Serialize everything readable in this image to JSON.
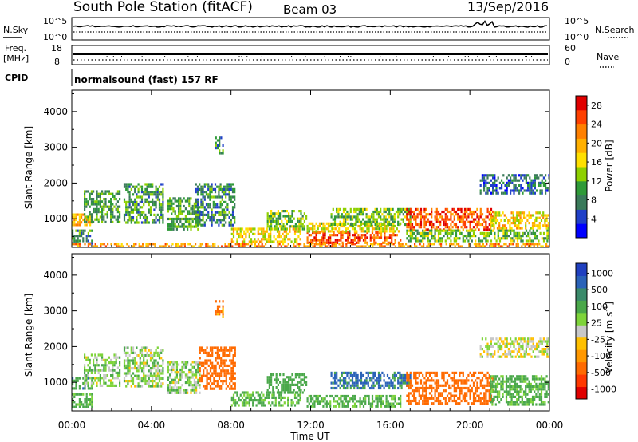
{
  "header": {
    "title": "South Pole Station (fitACF)",
    "beam": "Beam 03",
    "date": "13/Sep/2016"
  },
  "strips": {
    "nsky_label": "N.Sky",
    "nsearch_label": "N.Search",
    "noise_left_ticks": [
      "10^5",
      "10^0"
    ],
    "noise_right_ticks": [
      "10^5",
      "10^0"
    ],
    "freq_label": "Freq.",
    "freq_unit": "[MHz]",
    "freq_ticks": [
      "18",
      "8"
    ],
    "nave_label": "Nave",
    "nave_ticks": [
      "60",
      "0"
    ],
    "cpid_label": "CPID",
    "cpid_text": "normalsound (fast) 157 RF"
  },
  "chart_data": [
    {
      "type": "heatmap",
      "title": "",
      "xlabel": "Time UT",
      "ylabel": "Slant Range [km]",
      "x_ticks": [
        "00:00",
        "04:00",
        "08:00",
        "12:00",
        "16:00",
        "20:00",
        "00:00"
      ],
      "y_ticks": [
        1000,
        2000,
        3000,
        4000
      ],
      "ylim": [
        200,
        4600
      ],
      "colorbar": {
        "label": "Power [dB]",
        "ticks": [
          "4",
          "8",
          "12",
          "16",
          "20",
          "24",
          "28"
        ],
        "colors": [
          "#0000ff",
          "#2040c8",
          "#3a7a5a",
          "#2f9a38",
          "#8ed000",
          "#ffe000",
          "#ffb000",
          "#ff8000",
          "#ff4000",
          "#e00000"
        ]
      },
      "regions": [
        {
          "t0": 0.0,
          "t1": 1.0,
          "r0": 300,
          "r1": 700,
          "level": 8
        },
        {
          "t0": 0.0,
          "t1": 1.0,
          "r0": 800,
          "r1": 1150,
          "level": 20
        },
        {
          "t0": 0.6,
          "t1": 2.4,
          "r0": 900,
          "r1": 1800,
          "level": 10
        },
        {
          "t0": 2.6,
          "t1": 4.6,
          "r0": 900,
          "r1": 2000,
          "level": 9
        },
        {
          "t0": 4.8,
          "t1": 6.4,
          "r0": 700,
          "r1": 1600,
          "level": 10
        },
        {
          "t0": 6.2,
          "t1": 8.2,
          "r0": 800,
          "r1": 2000,
          "level": 8
        },
        {
          "t0": 7.2,
          "t1": 7.6,
          "r0": 2800,
          "r1": 3300,
          "level": 8
        },
        {
          "t0": 8.0,
          "t1": 11.5,
          "r0": 350,
          "r1": 750,
          "level": 18
        },
        {
          "t0": 9.8,
          "t1": 11.8,
          "r0": 700,
          "r1": 1250,
          "level": 12
        },
        {
          "t0": 11.8,
          "t1": 16.5,
          "r0": 350,
          "r1": 650,
          "level": 26
        },
        {
          "t0": 11.8,
          "t1": 16.5,
          "r0": 650,
          "r1": 900,
          "level": 16
        },
        {
          "t0": 13.0,
          "t1": 17.0,
          "r0": 800,
          "r1": 1300,
          "level": 12
        },
        {
          "t0": 16.8,
          "t1": 21.2,
          "r0": 700,
          "r1": 1300,
          "level": 26
        },
        {
          "t0": 16.8,
          "t1": 24.0,
          "r0": 400,
          "r1": 700,
          "level": 12
        },
        {
          "t0": 21.0,
          "t1": 24.0,
          "r0": 700,
          "r1": 1200,
          "level": 18
        },
        {
          "t0": 20.5,
          "t1": 24.0,
          "r0": 1700,
          "r1": 2250,
          "level": 6
        },
        {
          "t0": 0.0,
          "t1": 24.0,
          "r0": 230,
          "r1": 330,
          "level": 22
        }
      ]
    },
    {
      "type": "heatmap",
      "title": "",
      "xlabel": "Time UT",
      "ylabel": "Slant Range [km]",
      "x_ticks": [
        "00:00",
        "04:00",
        "08:00",
        "12:00",
        "16:00",
        "20:00",
        "00:00"
      ],
      "y_ticks": [
        1000,
        2000,
        3000,
        4000
      ],
      "ylim": [
        200,
        4600
      ],
      "colorbar": {
        "label": "Velocity [m s^-1]",
        "ticks": [
          "1000",
          "500",
          "100",
          "25",
          "-25",
          "-100",
          "-500",
          "-1000"
        ],
        "colors": [
          "#2040c0",
          "#2a62b8",
          "#3a8a6a",
          "#4aa84a",
          "#7ed43a",
          "#c8c8c8",
          "#ffc000",
          "#ff9800",
          "#ff6a00",
          "#ff3800",
          "#e00000"
        ]
      },
      "regions": [
        {
          "t0": 0.0,
          "t1": 1.0,
          "r0": 800,
          "r1": 1150,
          "vel": 400
        },
        {
          "t0": 0.0,
          "t1": 1.0,
          "r0": 300,
          "r1": 700,
          "vel": 150
        },
        {
          "t0": 0.6,
          "t1": 2.4,
          "r0": 900,
          "r1": 1800,
          "vel": 60
        },
        {
          "t0": 2.6,
          "t1": 4.6,
          "r0": 900,
          "r1": 2000,
          "vel": 50
        },
        {
          "t0": 4.8,
          "t1": 6.4,
          "r0": 700,
          "r1": 1600,
          "vel": 60
        },
        {
          "t0": 6.4,
          "t1": 8.2,
          "r0": 800,
          "r1": 2000,
          "vel": -200
        },
        {
          "t0": 7.2,
          "t1": 7.6,
          "r0": 2800,
          "r1": 3300,
          "vel": -150
        },
        {
          "t0": 8.0,
          "t1": 11.5,
          "r0": 350,
          "r1": 750,
          "vel": 150
        },
        {
          "t0": 9.8,
          "t1": 11.8,
          "r0": 700,
          "r1": 1250,
          "vel": 200
        },
        {
          "t0": 11.8,
          "t1": 16.5,
          "r0": 350,
          "r1": 650,
          "vel": 150
        },
        {
          "t0": 13.0,
          "t1": 17.0,
          "r0": 800,
          "r1": 1300,
          "vel": 600
        },
        {
          "t0": 16.8,
          "t1": 21.2,
          "r0": 400,
          "r1": 1300,
          "vel": -250
        },
        {
          "t0": 21.0,
          "t1": 24.0,
          "r0": 400,
          "r1": 1200,
          "vel": 150
        },
        {
          "t0": 20.5,
          "t1": 24.0,
          "r0": 1700,
          "r1": 2250,
          "vel": 0
        }
      ]
    }
  ]
}
